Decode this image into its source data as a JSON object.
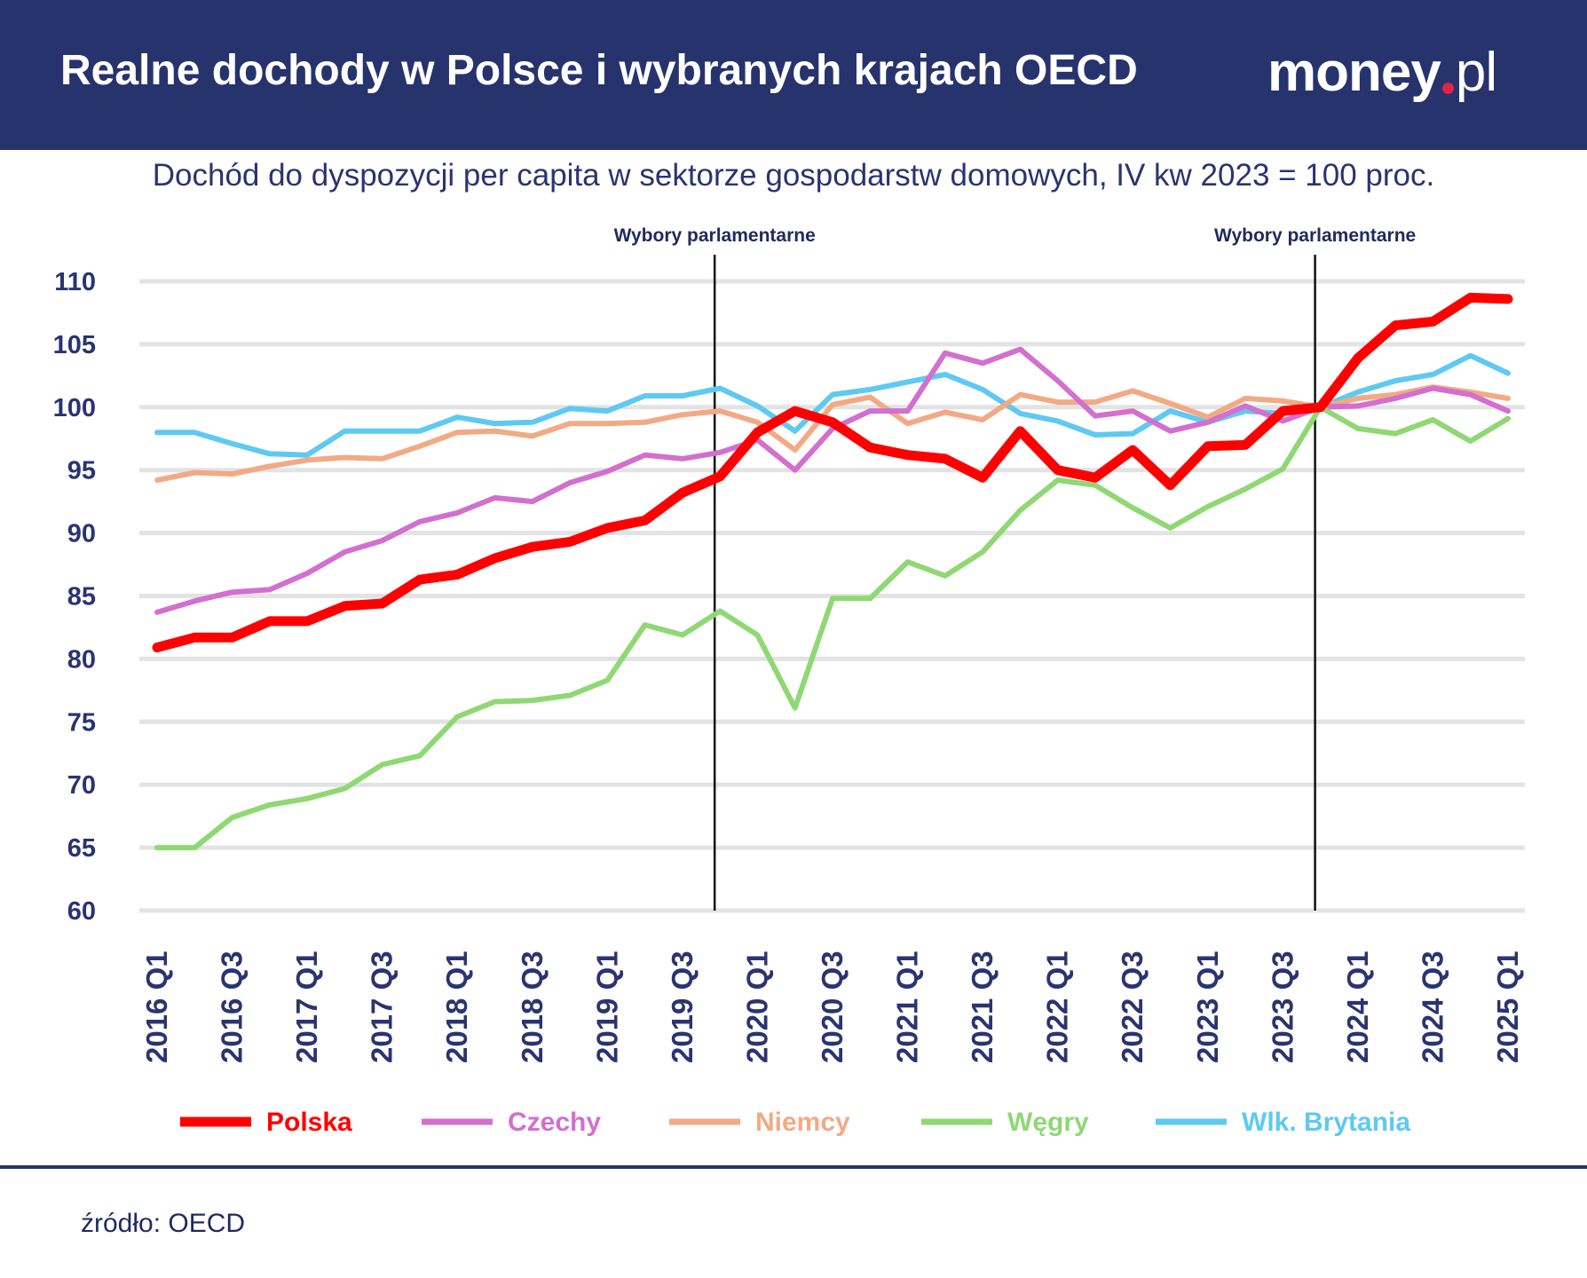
{
  "header": {
    "title": "Realne dochody w Polsce i wybranych krajach OECD",
    "logo_text": "money.pl",
    "background": "#27336d"
  },
  "subtitle": "Dochód do dyspozycji per capita w sektorze gospodarstw domowych, IV kw 2023 = 100 proc.",
  "footer": {
    "source": "źródło: OECD"
  },
  "chart_data": {
    "type": "line",
    "title": "Realne dochody w Polsce i wybranych krajach OECD",
    "subtitle": "Dochód do dyspozycji per capita w sektorze gospodarstw domowych, IV kw 2023 = 100 proc.",
    "xlabel": "",
    "ylabel": "",
    "ylim": [
      60,
      110
    ],
    "yticks": [
      110,
      105,
      100,
      95,
      90,
      85,
      80,
      75,
      70,
      65,
      60
    ],
    "grid": true,
    "legend_position": "bottom",
    "x": [
      "2016 Q1",
      "2016 Q2",
      "2016 Q3",
      "2016 Q4",
      "2017 Q1",
      "2017 Q2",
      "2017 Q3",
      "2017 Q4",
      "2018 Q1",
      "2018 Q2",
      "2018 Q3",
      "2018 Q4",
      "2019 Q1",
      "2019 Q2",
      "2019 Q3",
      "2019 Q4",
      "2020 Q1",
      "2020 Q2",
      "2020 Q3",
      "2020 Q4",
      "2021 Q1",
      "2021 Q2",
      "2021 Q3",
      "2021 Q4",
      "2022 Q1",
      "2022 Q2",
      "2022 Q3",
      "2022 Q4",
      "2023 Q1",
      "2023 Q2",
      "2023 Q3",
      "2023 Q4",
      "2024 Q1",
      "2024 Q2",
      "2024 Q3",
      "2024 Q4",
      "2025 Q1"
    ],
    "xtick_labels": [
      "2016 Q1",
      "2016 Q3",
      "2017 Q1",
      "2017 Q3",
      "2018 Q1",
      "2018 Q3",
      "2019 Q1",
      "2019 Q3",
      "2020 Q1",
      "2020 Q3",
      "2021 Q1",
      "2021 Q3",
      "2022 Q1",
      "2022 Q3",
      "2023 Q1",
      "2023 Q3",
      "2024 Q1",
      "2024 Q3",
      "2025 Q1"
    ],
    "annotations": [
      {
        "text": "Wybory parlamentarne",
        "at": "2019 Q4"
      },
      {
        "text": "Wybory parlamentarne",
        "at": "2023 Q4"
      }
    ],
    "series": [
      {
        "name": "Polska",
        "color": "#ff0000",
        "values": [
          80.9,
          81.7,
          81.7,
          83.0,
          83.0,
          84.2,
          84.4,
          86.3,
          86.7,
          88.0,
          88.9,
          89.3,
          90.4,
          91.0,
          93.2,
          94.5,
          98.0,
          99.7,
          98.8,
          96.8,
          96.2,
          95.9,
          94.4,
          98.1,
          95.0,
          94.4,
          96.6,
          93.8,
          96.9,
          97.0,
          99.7,
          100.0,
          103.9,
          106.5,
          106.8,
          108.7,
          108.6
        ]
      },
      {
        "name": "Czechy",
        "color": "#d36fcf",
        "values": [
          83.7,
          84.6,
          85.3,
          85.5,
          86.8,
          88.5,
          89.4,
          90.9,
          91.6,
          92.8,
          92.5,
          94.0,
          94.9,
          96.2,
          95.9,
          96.4,
          97.4,
          95.0,
          98.3,
          99.7,
          99.7,
          104.3,
          103.5,
          104.6,
          102.1,
          99.3,
          99.7,
          98.1,
          98.8,
          100.1,
          98.9,
          100.0,
          100.1,
          100.7,
          101.5,
          101.0,
          99.7
        ]
      },
      {
        "name": "Niemcy",
        "color": "#f2aa85",
        "values": [
          94.2,
          94.8,
          94.7,
          95.3,
          95.8,
          96.0,
          95.9,
          96.9,
          98.0,
          98.1,
          97.7,
          98.7,
          98.7,
          98.8,
          99.4,
          99.7,
          98.8,
          96.6,
          100.2,
          100.8,
          98.7,
          99.6,
          99.0,
          101.0,
          100.4,
          100.4,
          101.3,
          100.3,
          99.2,
          100.7,
          100.5,
          100.0,
          100.7,
          101.0,
          101.6,
          101.2,
          100.7
        ]
      },
      {
        "name": "Węgry",
        "color": "#8fd873",
        "values": [
          65.0,
          65.0,
          67.4,
          68.4,
          68.9,
          69.7,
          71.6,
          72.3,
          75.4,
          76.6,
          76.7,
          77.1,
          78.3,
          82.7,
          81.9,
          83.8,
          81.9,
          76.1,
          84.8,
          84.8,
          87.7,
          86.6,
          88.5,
          91.8,
          94.2,
          93.8,
          92.0,
          90.4,
          92.1,
          93.5,
          95.1,
          100.0,
          98.3,
          97.9,
          99.0,
          97.3,
          99.1
        ]
      },
      {
        "name": "Wlk. Brytania",
        "color": "#5ec9f2",
        "values": [
          98.0,
          98.0,
          97.1,
          96.3,
          96.2,
          98.1,
          98.1,
          98.1,
          99.2,
          98.7,
          98.8,
          99.9,
          99.7,
          100.9,
          100.9,
          101.5,
          100.1,
          98.1,
          101.0,
          101.4,
          102.0,
          102.6,
          101.4,
          99.5,
          98.9,
          97.8,
          97.9,
          99.7,
          98.8,
          99.7,
          99.5,
          100.0,
          101.2,
          102.1,
          102.6,
          104.1,
          102.7
        ]
      }
    ]
  }
}
